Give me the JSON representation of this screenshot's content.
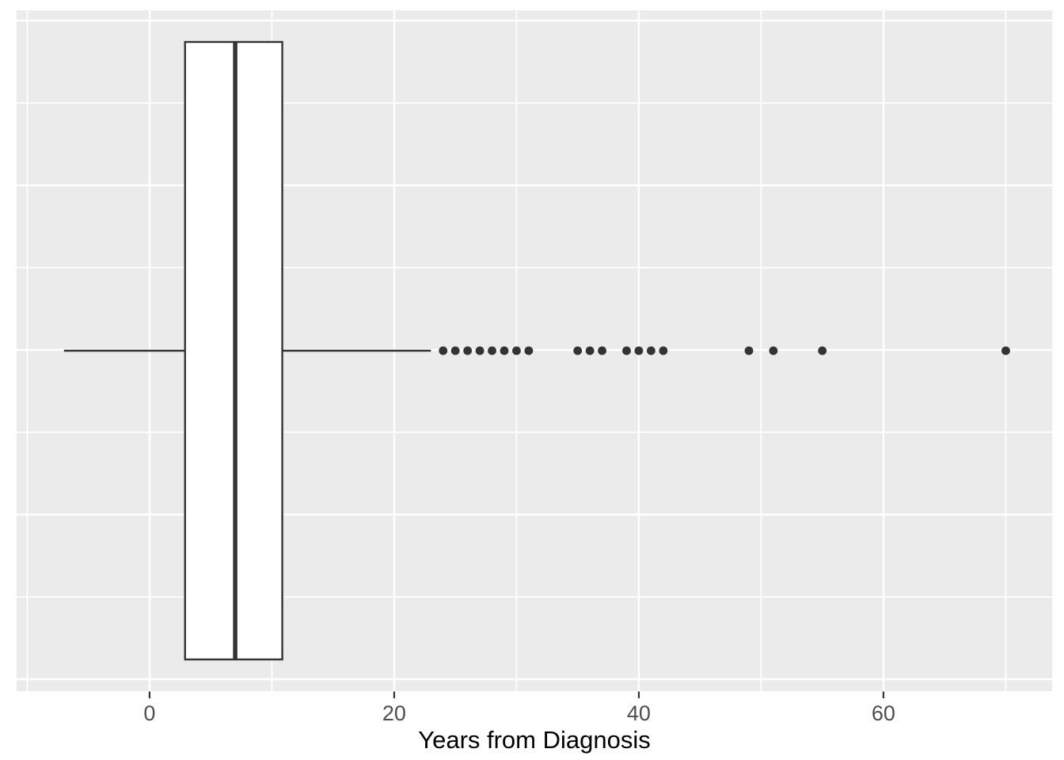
{
  "chart_data": {
    "type": "boxplot",
    "orientation": "horizontal",
    "title": "",
    "xlabel": "Years from Diagnosis",
    "ylabel": "",
    "x_ticks": [
      0,
      20,
      40,
      60
    ],
    "x_minor_ticks": [
      -10,
      10,
      30,
      50,
      70
    ],
    "xlim": [
      -10.87,
      73.79
    ],
    "y_tick_labels": [],
    "legend": "none",
    "grid": "on",
    "box": {
      "whisker_min": -7,
      "q1": 2.9,
      "median": 7,
      "q3": 10.85,
      "whisker_max": 23
    },
    "outliers": [
      24,
      25,
      26,
      27,
      28,
      29,
      30,
      31,
      35,
      36,
      37,
      39,
      40,
      41,
      42,
      49,
      51,
      55,
      70
    ],
    "colors": {
      "panel_background": "#EBEBEB",
      "gridline": "#FFFFFF",
      "box_fill": "#FFFFFF",
      "box_stroke": "#333333",
      "outlier": "#333333",
      "tick_mark": "#333333",
      "axis_text": "#4D4D4D",
      "axis_title": "#000000",
      "figure_background": "#FFFFFF"
    }
  }
}
